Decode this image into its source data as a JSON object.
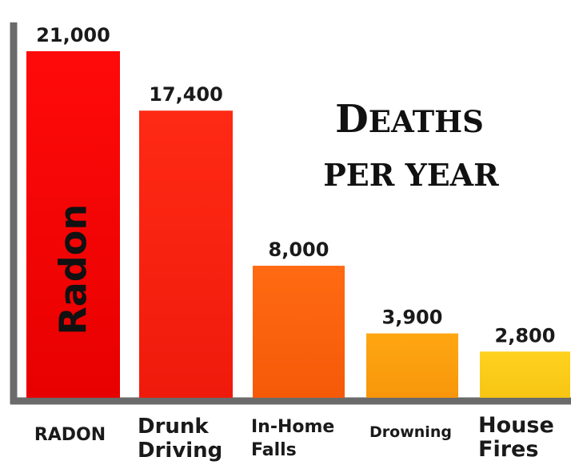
{
  "chart_data": {
    "type": "bar",
    "title": "Deaths per year",
    "xlabel": "",
    "ylabel": "",
    "ylim": [
      0,
      21000
    ],
    "grid": false,
    "categories": [
      "RADON",
      "Drunk Driving",
      "In-Home Falls",
      "Drowning",
      "House Fires"
    ],
    "category_lines": [
      [
        "RADON"
      ],
      [
        "Drunk",
        "Driving"
      ],
      [
        "In-Home",
        "Falls"
      ],
      [
        "Drowning"
      ],
      [
        "House",
        "Fires"
      ]
    ],
    "values": [
      21000,
      17400,
      8000,
      3900,
      2800
    ],
    "value_labels": [
      "21,000",
      "17,400",
      "8,000",
      "3,900",
      "2,800"
    ],
    "bar_inner_labels": [
      "Radon",
      "",
      "",
      "",
      ""
    ],
    "colors": {
      "bars_top": [
        "#ff0a0a",
        "#ff2a14",
        "#ff6a12",
        "#ffa712",
        "#ffd21e"
      ],
      "bars_bottom": [
        "#e80000",
        "#f01a0c",
        "#f55a08",
        "#f7960a",
        "#f7c514"
      ],
      "axis": "#6b6b6b"
    }
  }
}
